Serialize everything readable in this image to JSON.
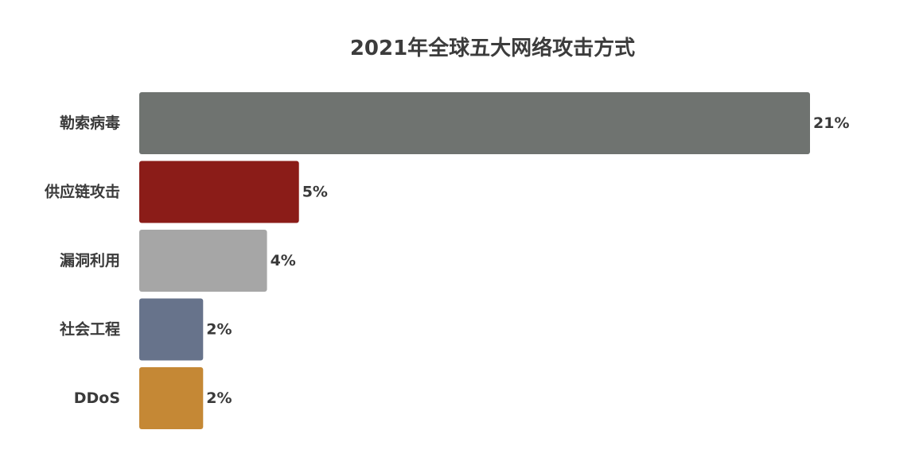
{
  "chart_data": {
    "type": "bar",
    "orientation": "horizontal",
    "title": "2021年全球五大网络攻击方式",
    "categories": [
      "勒索病毒",
      "供应链攻击",
      "漏洞利用",
      "社会工程",
      "DDoS"
    ],
    "values": [
      21,
      5,
      4,
      2,
      2
    ],
    "value_labels": [
      "21%",
      "5%",
      "4%",
      "2%",
      "2%"
    ],
    "colors": [
      "#6f7370",
      "#8b1c18",
      "#a6a6a6",
      "#67738b",
      "#c58835"
    ],
    "xlim": [
      0,
      21
    ],
    "grid": false,
    "legend": "none"
  }
}
